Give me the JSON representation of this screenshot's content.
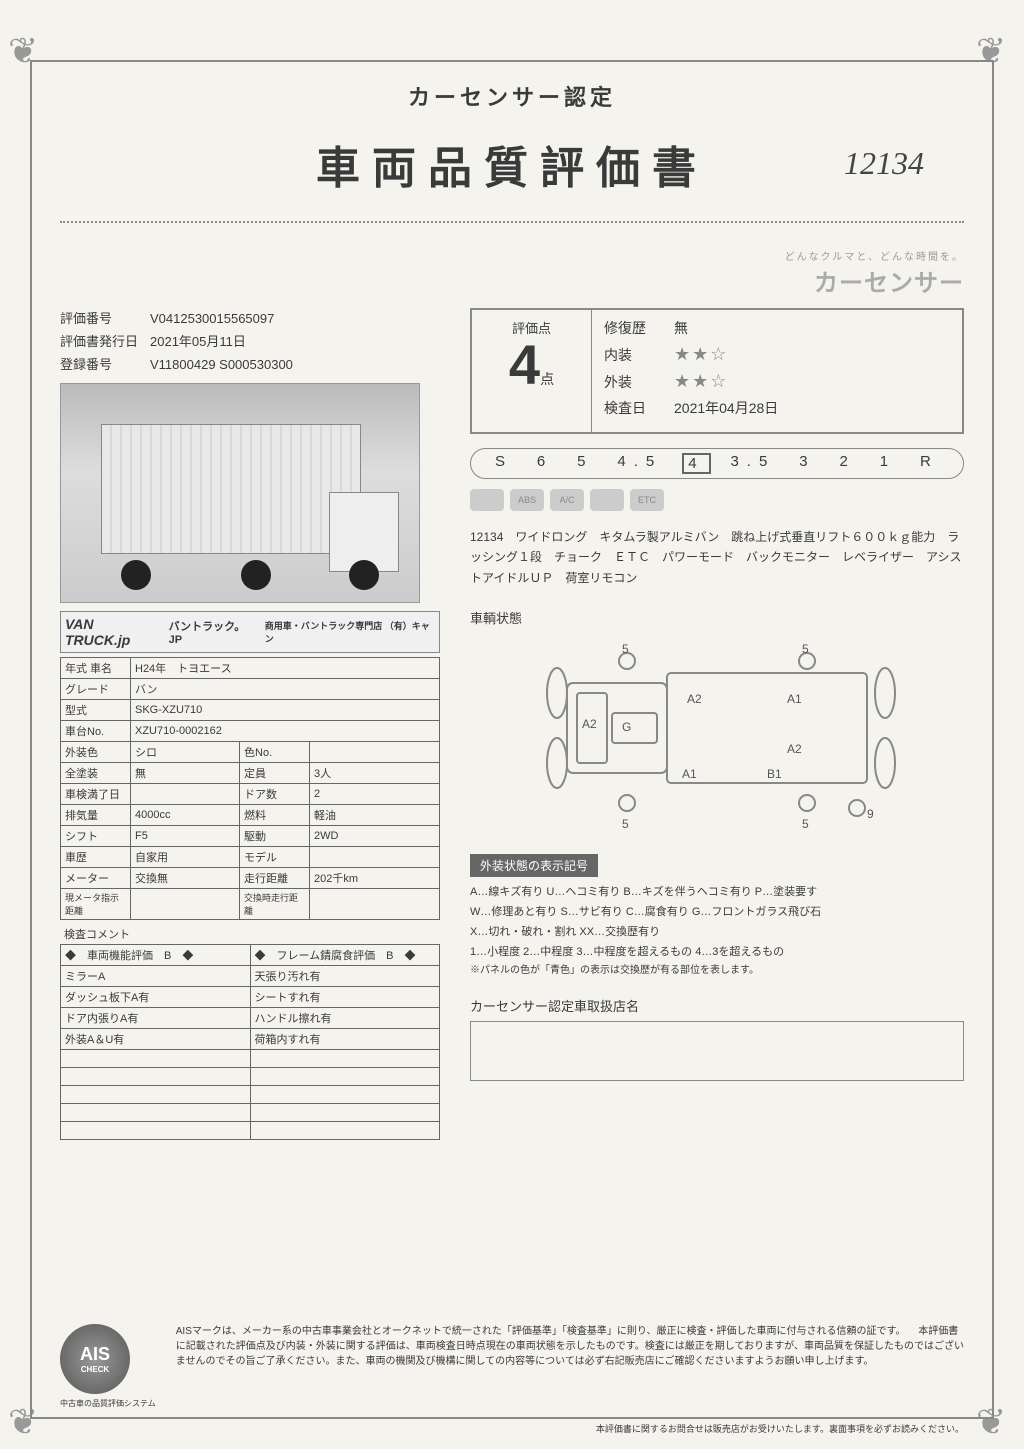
{
  "header": {
    "subtitle": "カーセンサー認定",
    "title": "車両品質評価書",
    "handwritten": "12134"
  },
  "brand": {
    "tagline": "どんなクルマと、どんな時間を。",
    "name": "カーセンサー"
  },
  "meta": {
    "eval_no_label": "評価番号",
    "eval_no": "V0412530015565097",
    "issue_label": "評価書発行日",
    "issue_date": "2021年05月11日",
    "reg_label": "登録番号",
    "reg_no": "V11800429 S000530300"
  },
  "logo_bar": {
    "main": "VAN TRUCK.jp",
    "sub": "バントラック。JP",
    "small": "商用車・バントラック専門店 （有）キャン"
  },
  "spec": {
    "year_label": "年式 車名",
    "year": "H24年　トヨエース",
    "grade_label": "グレード",
    "grade": "バン",
    "model_label": "型式",
    "model": "SKG-XZU710",
    "chassis_label": "車台No.",
    "chassis": "XZU710-0002162",
    "ext_color_label": "外装色",
    "ext_color": "シロ",
    "colorno_label": "色No.",
    "colorno": "",
    "paint_label": "全塗装",
    "paint": "無",
    "capacity_label": "定員",
    "capacity": "3人",
    "shaken_label": "車検満了日",
    "shaken": "",
    "doors_label": "ドア数",
    "doors": "2",
    "disp_label": "排気量",
    "disp": "4000cc",
    "fuel_label": "燃料",
    "fuel": "軽油",
    "shift_label": "シフト",
    "shift": "F5",
    "drive_label": "駆動",
    "drive": "2WD",
    "history_label": "車歴",
    "history": "自家用",
    "modelyr_label": "モデル",
    "modelyr": "",
    "meter_label": "メーター",
    "meter": "交換無",
    "odo_label": "走行距離",
    "odo": "202千km",
    "cur_meter_label": "現メータ指示距離",
    "cur_meter": "",
    "exch_odo_label": "交換時走行距離",
    "exch_odo": ""
  },
  "comment": {
    "header": "検査コメント",
    "left_header": "◆　車両機能評価　B　◆",
    "right_header": "◆　フレーム錆腐食評価　B　◆",
    "rows": [
      [
        "ミラーA",
        "天張り汚れ有"
      ],
      [
        "ダッシュ板下A有",
        "シートすれ有"
      ],
      [
        "ドア内張りA有",
        "ハンドル擦れ有"
      ],
      [
        "外装A＆U有",
        "荷箱内すれ有"
      ],
      [
        "",
        ""
      ],
      [
        "",
        ""
      ],
      [
        "",
        ""
      ],
      [
        "",
        ""
      ],
      [
        "",
        ""
      ]
    ]
  },
  "score": {
    "label": "評価点",
    "value": "4",
    "unit": "点",
    "repair_label": "修復歴",
    "repair": "無",
    "interior_label": "内装",
    "interior_stars": "★★☆",
    "exterior_label": "外装",
    "exterior_stars": "★★☆",
    "inspect_label": "検査日",
    "inspect_date": "2021年04月28日"
  },
  "scale": {
    "items": [
      "S",
      "6",
      "5",
      "4.5",
      "4",
      "3.5",
      "3",
      "2",
      "1",
      "R"
    ],
    "selected": "4"
  },
  "badges": [
    "",
    "ABS",
    "A/C",
    "",
    "ETC"
  ],
  "description": "12134　ワイドロング　キタムラ製アルミバン　跳ね上げ式垂直リフト６００ｋｇ能力　ラッシング１段　チョーク　ＥＴＣ　パワーモード　バックモニター　レベライザー　アシストアイドルＵＰ　荷室リモコン",
  "diagram": {
    "title": "車輌状態",
    "labels": {
      "a1": "A1",
      "a2": "A2",
      "b1": "B1",
      "g": "G",
      "a1b": "A1",
      "a2s": "A2",
      "a2t": "A2",
      "five": "5",
      "nine": "9"
    }
  },
  "legend": {
    "header": "外装状態の表示記号",
    "line1": "A…線キズ有り U…ヘコミ有り B…キズを伴うヘコミ有り P…塗装要す",
    "line2": "W…修理あと有り S…サビ有り C…腐食有り G…フロントガラス飛び石",
    "line3": "X…切れ・破れ・割れ XX…交換歴有り",
    "line4": "1…小程度 2…中程度 3…中程度を超えるもの 4…3を超えるもの",
    "note": "※パネルの色が「青色」の表示は交換歴が有る部位を表します。"
  },
  "dealer": {
    "title": "カーセンサー認定車取扱店名"
  },
  "ais": {
    "main": "AIS",
    "sub": "CHECK",
    "caption": "中古車の品質評価システム",
    "text": "AISマークは、メーカー系の中古車事業会社とオークネットで統一された「評価基準」「検査基準」に則り、厳正に検査・評価した車両に付与される信頼の証です。\n　本評価書に記載された評価点及び内装・外装に関する評価は、車両検査日時点現在の車両状態を示したものです。検査には厳正を期しておりますが、車両品質を保証したものではございませんのでその旨ご了承ください。また、車両の機関及び機構に関しての内容等については必ず右記販売店にご確認くださいますようお願い申し上げます。"
  },
  "footnote": "本評価書に関するお問合せは販売店がお受けいたします。裏面事項を必ずお読みください。"
}
